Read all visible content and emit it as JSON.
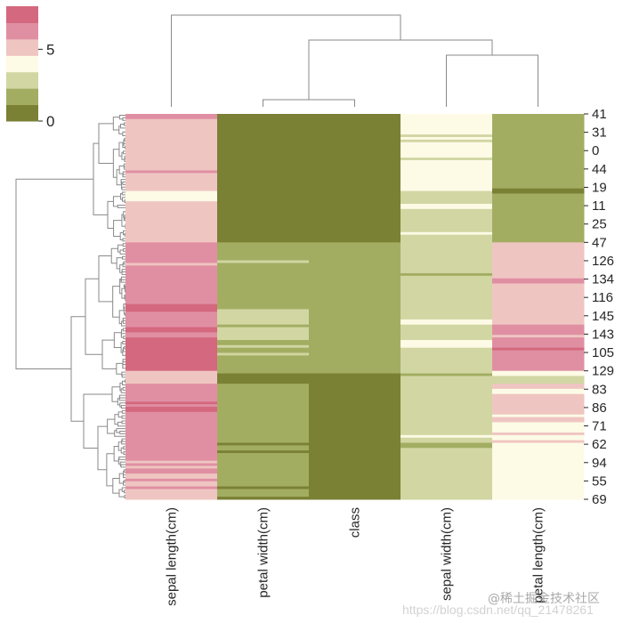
{
  "chart_data": {
    "type": "heatmap",
    "title": "",
    "columns": [
      "sepal length(cm)",
      "petal width(cm)",
      "class",
      "sepal width(cm)",
      "petal length(cm)"
    ],
    "row_count": 150,
    "row_tick_labels": [
      "41",
      "31",
      "0",
      "44",
      "19",
      "11",
      "25",
      "47",
      "126",
      "134",
      "116",
      "145",
      "143",
      "105",
      "129",
      "83",
      "86",
      "71",
      "62",
      "94",
      "55",
      "69"
    ],
    "colorbar": {
      "range": [
        0,
        8
      ],
      "ticks": [
        0,
        5
      ],
      "tick_labels": [
        "0",
        "5"
      ],
      "colors": [
        "#7a8034",
        "#a3ad62",
        "#d1d6a3",
        "#fdfbe6",
        "#efc5c2",
        "#e08fa3",
        "#d4687f"
      ]
    },
    "column_runs": [
      [
        [
          5,
          2
        ],
        [
          4,
          20
        ],
        [
          5,
          1
        ],
        [
          4,
          7
        ],
        [
          3,
          4
        ],
        [
          4,
          16
        ],
        [
          5,
          8
        ],
        [
          4,
          1
        ],
        [
          5,
          15
        ],
        [
          6,
          3
        ],
        [
          5,
          6
        ],
        [
          6,
          2
        ],
        [
          5,
          2
        ],
        [
          6,
          13
        ],
        [
          4,
          5
        ],
        [
          5,
          7
        ],
        [
          6,
          1
        ],
        [
          5,
          1
        ],
        [
          6,
          2
        ],
        [
          5,
          19
        ],
        [
          4,
          1
        ],
        [
          5,
          1
        ],
        [
          4,
          1
        ],
        [
          5,
          2
        ],
        [
          4,
          2
        ],
        [
          5,
          1
        ],
        [
          4,
          2
        ],
        [
          5,
          1
        ],
        [
          4,
          4
        ]
      ],
      [
        [
          0,
          50
        ],
        [
          1,
          7
        ],
        [
          2,
          1
        ],
        [
          1,
          18
        ],
        [
          2,
          6
        ],
        [
          1,
          1
        ],
        [
          2,
          5
        ],
        [
          1,
          2
        ],
        [
          2,
          1
        ],
        [
          1,
          2
        ],
        [
          2,
          1
        ],
        [
          1,
          7
        ],
        [
          0,
          4
        ],
        [
          1,
          23
        ],
        [
          0,
          1
        ],
        [
          1,
          2
        ],
        [
          0,
          1
        ],
        [
          1,
          13
        ],
        [
          0,
          1
        ],
        [
          1,
          3
        ],
        [
          0,
          1
        ]
      ],
      [
        [
          0,
          50
        ],
        [
          1,
          51
        ],
        [
          0,
          49
        ]
      ],
      [
        [
          3,
          8
        ],
        [
          2,
          1
        ],
        [
          3,
          1
        ],
        [
          2,
          1
        ],
        [
          3,
          6
        ],
        [
          2,
          1
        ],
        [
          3,
          12
        ],
        [
          2,
          5
        ],
        [
          3,
          2
        ],
        [
          2,
          9
        ],
        [
          3,
          1
        ],
        [
          2,
          15
        ],
        [
          1,
          1
        ],
        [
          2,
          17
        ],
        [
          3,
          2
        ],
        [
          2,
          6
        ],
        [
          3,
          3
        ],
        [
          2,
          10
        ],
        [
          1,
          1
        ],
        [
          2,
          23
        ],
        [
          3,
          1
        ],
        [
          2,
          2
        ],
        [
          1,
          2
        ],
        [
          2,
          20
        ]
      ],
      [
        [
          1,
          29
        ],
        [
          0,
          2
        ],
        [
          1,
          19
        ],
        [
          4,
          14
        ],
        [
          5,
          2
        ],
        [
          4,
          16
        ],
        [
          5,
          4
        ],
        [
          4,
          1
        ],
        [
          5,
          4
        ],
        [
          6,
          1
        ],
        [
          5,
          8
        ],
        [
          3,
          2
        ],
        [
          2,
          3
        ],
        [
          4,
          2
        ],
        [
          3,
          2
        ],
        [
          4,
          8
        ],
        [
          3,
          1
        ],
        [
          4,
          2
        ],
        [
          3,
          4
        ],
        [
          4,
          1
        ],
        [
          3,
          2
        ],
        [
          4,
          1
        ],
        [
          3,
          22
        ]
      ]
    ]
  },
  "watermark": {
    "line1": "@稀土掘金技术社区",
    "line2": "https://blog.csdn.net/qq_21478261"
  }
}
